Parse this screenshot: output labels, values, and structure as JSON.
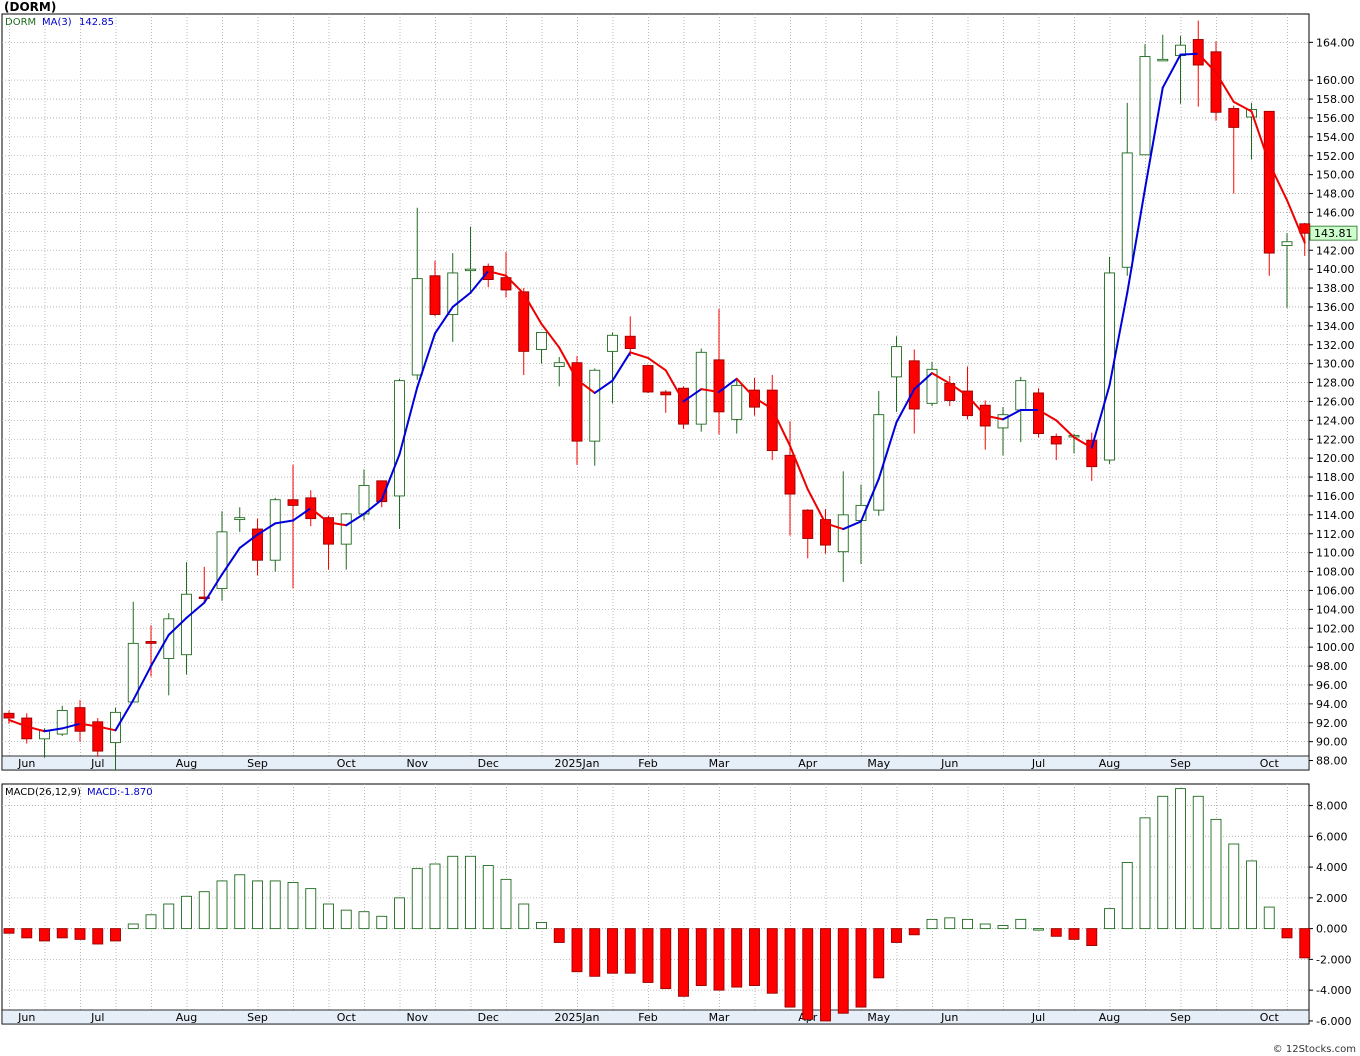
{
  "title": "(DORM)",
  "footer": "© 12Stocks.com",
  "colors": {
    "up": "#1f6b1f",
    "down": "#ff0000",
    "ma_up": "#0000dd",
    "ma_down": "#ee0000",
    "grid": "#aaaaaa",
    "last_bg": "#ccffcc"
  },
  "chart_data": [
    {
      "type": "candlestick",
      "symbol": "DORM",
      "legend": [
        "DORM",
        "MA(3)",
        "142.85"
      ],
      "ylim": [
        87,
        167
      ],
      "yticks": [
        88,
        90,
        92,
        94,
        96,
        98,
        100,
        102,
        104,
        106,
        108,
        110,
        112,
        114,
        116,
        118,
        120,
        122,
        124,
        126,
        128,
        130,
        132,
        134,
        136,
        138,
        140,
        142,
        144,
        146,
        148,
        150,
        152,
        154,
        156,
        158,
        160,
        164
      ],
      "last_price": "143.81",
      "xticks": [
        {
          "label": "Jun",
          "i": 1
        },
        {
          "label": "Jul",
          "i": 5
        },
        {
          "label": "Aug",
          "i": 10
        },
        {
          "label": "Sep",
          "i": 14
        },
        {
          "label": "Oct",
          "i": 19
        },
        {
          "label": "Nov",
          "i": 23
        },
        {
          "label": "Dec",
          "i": 27
        },
        {
          "label": "2025Jan",
          "i": 32
        },
        {
          "label": "Feb",
          "i": 36
        },
        {
          "label": "Mar",
          "i": 40
        },
        {
          "label": "Apr",
          "i": 45
        },
        {
          "label": "May",
          "i": 49
        },
        {
          "label": "Jun",
          "i": 53
        },
        {
          "label": "Jul",
          "i": 58
        },
        {
          "label": "Aug",
          "i": 62
        },
        {
          "label": "Sep",
          "i": 66
        },
        {
          "label": "Oct",
          "i": 71
        }
      ],
      "grid": true,
      "candles": [
        {
          "o": 93.0,
          "h": 93.3,
          "l": 91.9,
          "c": 92.5
        },
        {
          "o": 92.5,
          "h": 93.0,
          "l": 89.8,
          "c": 90.3
        },
        {
          "o": 90.3,
          "h": 91.4,
          "l": 88.3,
          "c": 91.2
        },
        {
          "o": 90.8,
          "h": 93.8,
          "l": 90.6,
          "c": 93.3
        },
        {
          "o": 93.6,
          "h": 94.4,
          "l": 90.0,
          "c": 91.1
        },
        {
          "o": 92.1,
          "h": 92.5,
          "l": 88.4,
          "c": 89.0
        },
        {
          "o": 89.9,
          "h": 93.6,
          "l": 87.0,
          "c": 93.1
        },
        {
          "o": 94.2,
          "h": 104.8,
          "l": 94.2,
          "c": 100.4
        },
        {
          "o": 100.6,
          "h": 102.3,
          "l": 96.9,
          "c": 100.4
        },
        {
          "o": 98.8,
          "h": 103.6,
          "l": 94.9,
          "c": 103.0
        },
        {
          "o": 99.2,
          "h": 109.0,
          "l": 97.1,
          "c": 105.6
        },
        {
          "o": 105.3,
          "h": 108.5,
          "l": 104.6,
          "c": 105.2
        },
        {
          "o": 106.2,
          "h": 114.4,
          "l": 104.9,
          "c": 112.2
        },
        {
          "o": 113.5,
          "h": 114.8,
          "l": 112.2,
          "c": 113.7
        },
        {
          "o": 112.5,
          "h": 113.6,
          "l": 107.6,
          "c": 109.2
        },
        {
          "o": 109.2,
          "h": 115.8,
          "l": 108.0,
          "c": 115.6
        },
        {
          "o": 115.6,
          "h": 119.3,
          "l": 106.2,
          "c": 115.0
        },
        {
          "o": 115.8,
          "h": 116.6,
          "l": 112.8,
          "c": 113.6
        },
        {
          "o": 113.7,
          "h": 113.9,
          "l": 108.2,
          "c": 110.9
        },
        {
          "o": 110.9,
          "h": 114.2,
          "l": 108.2,
          "c": 114.1
        },
        {
          "o": 114.1,
          "h": 118.8,
          "l": 113.4,
          "c": 117.1
        },
        {
          "o": 117.6,
          "h": 117.6,
          "l": 114.8,
          "c": 115.4
        },
        {
          "o": 116.0,
          "h": 128.4,
          "l": 112.5,
          "c": 128.2
        },
        {
          "o": 128.8,
          "h": 146.5,
          "l": 128.3,
          "c": 139.0
        },
        {
          "o": 139.3,
          "h": 140.9,
          "l": 135.0,
          "c": 135.2
        },
        {
          "o": 135.2,
          "h": 141.7,
          "l": 132.3,
          "c": 139.6
        },
        {
          "o": 140.0,
          "h": 144.5,
          "l": 137.6,
          "c": 140.0
        },
        {
          "o": 140.3,
          "h": 140.6,
          "l": 138.1,
          "c": 138.9
        },
        {
          "o": 139.1,
          "h": 141.8,
          "l": 137.0,
          "c": 137.8
        },
        {
          "o": 137.6,
          "h": 138.0,
          "l": 128.8,
          "c": 131.3
        },
        {
          "o": 131.5,
          "h": 133.3,
          "l": 130.0,
          "c": 133.3
        },
        {
          "o": 129.7,
          "h": 130.7,
          "l": 127.6,
          "c": 130.1
        },
        {
          "o": 130.1,
          "h": 130.8,
          "l": 119.3,
          "c": 121.8
        },
        {
          "o": 121.8,
          "h": 129.5,
          "l": 119.2,
          "c": 129.3
        },
        {
          "o": 131.3,
          "h": 133.3,
          "l": 125.8,
          "c": 133.0
        },
        {
          "o": 132.9,
          "h": 135.0,
          "l": 130.8,
          "c": 131.6
        },
        {
          "o": 129.8,
          "h": 129.9,
          "l": 126.9,
          "c": 127.0
        },
        {
          "o": 127.0,
          "h": 127.2,
          "l": 124.8,
          "c": 126.7
        },
        {
          "o": 127.4,
          "h": 127.6,
          "l": 123.1,
          "c": 123.6
        },
        {
          "o": 123.6,
          "h": 131.6,
          "l": 122.8,
          "c": 131.2
        },
        {
          "o": 130.4,
          "h": 135.8,
          "l": 122.5,
          "c": 124.9
        },
        {
          "o": 124.1,
          "h": 128.5,
          "l": 122.6,
          "c": 127.7
        },
        {
          "o": 127.2,
          "h": 128.5,
          "l": 124.5,
          "c": 125.4
        },
        {
          "o": 127.2,
          "h": 128.8,
          "l": 119.8,
          "c": 120.8
        },
        {
          "o": 120.3,
          "h": 123.9,
          "l": 111.8,
          "c": 116.2
        },
        {
          "o": 114.5,
          "h": 114.6,
          "l": 109.4,
          "c": 111.5
        },
        {
          "o": 113.5,
          "h": 114.6,
          "l": 109.9,
          "c": 110.8
        },
        {
          "o": 110.1,
          "h": 118.6,
          "l": 106.9,
          "c": 114.0
        },
        {
          "o": 113.4,
          "h": 117.2,
          "l": 108.8,
          "c": 115.0
        },
        {
          "o": 114.5,
          "h": 127.1,
          "l": 113.9,
          "c": 124.6
        },
        {
          "o": 128.6,
          "h": 132.9,
          "l": 124.9,
          "c": 131.8
        },
        {
          "o": 130.3,
          "h": 131.5,
          "l": 122.6,
          "c": 125.2
        },
        {
          "o": 125.8,
          "h": 130.2,
          "l": 125.5,
          "c": 129.4
        },
        {
          "o": 127.9,
          "h": 128.7,
          "l": 125.5,
          "c": 126.1
        },
        {
          "o": 127.1,
          "h": 129.7,
          "l": 124.1,
          "c": 124.5
        },
        {
          "o": 125.6,
          "h": 126.1,
          "l": 120.9,
          "c": 123.4
        },
        {
          "o": 123.2,
          "h": 125.4,
          "l": 120.3,
          "c": 124.6
        },
        {
          "o": 125.1,
          "h": 128.6,
          "l": 121.7,
          "c": 128.2
        },
        {
          "o": 126.9,
          "h": 127.4,
          "l": 122.2,
          "c": 122.6
        },
        {
          "o": 122.3,
          "h": 122.6,
          "l": 119.8,
          "c": 121.5
        },
        {
          "o": 122.4,
          "h": 122.6,
          "l": 120.5,
          "c": 122.4
        },
        {
          "o": 121.9,
          "h": 122.7,
          "l": 117.6,
          "c": 119.1
        },
        {
          "o": 119.8,
          "h": 141.3,
          "l": 119.4,
          "c": 139.6
        },
        {
          "o": 140.2,
          "h": 157.6,
          "l": 139.3,
          "c": 152.3
        },
        {
          "o": 152.1,
          "h": 163.8,
          "l": 152.1,
          "c": 162.5
        },
        {
          "o": 162.1,
          "h": 164.8,
          "l": 162.1,
          "c": 162.2
        },
        {
          "o": 162.6,
          "h": 164.7,
          "l": 157.5,
          "c": 163.7
        },
        {
          "o": 164.3,
          "h": 166.3,
          "l": 157.2,
          "c": 161.6
        },
        {
          "o": 163.0,
          "h": 164.1,
          "l": 155.7,
          "c": 156.6
        },
        {
          "o": 157.0,
          "h": 157.3,
          "l": 148.0,
          "c": 155.0
        },
        {
          "o": 156.1,
          "h": 157.6,
          "l": 151.6,
          "c": 156.9
        },
        {
          "o": 156.7,
          "h": 156.7,
          "l": 139.3,
          "c": 141.7
        },
        {
          "o": 142.5,
          "h": 143.8,
          "l": 135.9,
          "c": 142.9
        },
        {
          "o": 144.8,
          "h": 144.9,
          "l": 141.4,
          "c": 143.8
        }
      ],
      "ma3": [
        92.3,
        91.6,
        91.1,
        91.4,
        91.9,
        91.6,
        91.2,
        94.4,
        98.0,
        101.3,
        103.1,
        104.7,
        107.7,
        110.5,
        111.9,
        113.1,
        113.4,
        114.7,
        113.2,
        112.9,
        114.1,
        115.6,
        120.4,
        127.5,
        133.2,
        136.0,
        137.5,
        139.8,
        139.3,
        137.4,
        134.2,
        131.7,
        128.3,
        126.9,
        128.2,
        131.2,
        130.6,
        129.3,
        126.0,
        127.3,
        127.0,
        128.4,
        126.4,
        125.2,
        121.3,
        116.7,
        113.1,
        112.5,
        113.3,
        117.8,
        123.8,
        127.3,
        129.0,
        127.9,
        126.6,
        124.5,
        124.1,
        125.1,
        125.1,
        124.0,
        122.2,
        121.1,
        127.7,
        137.5,
        148.5,
        159.2,
        162.7,
        162.8,
        160.8,
        157.7,
        156.7,
        151.2,
        147.3,
        142.8
      ]
    },
    {
      "type": "bar",
      "title": "MACD(26,12,9)",
      "legend": [
        "MACD(26,12,9)",
        "MACD:-1.870"
      ],
      "ylim": [
        -6.2,
        9.4
      ],
      "yticks": [
        8,
        6,
        4,
        2,
        0,
        -2,
        -4,
        -6
      ],
      "ytick_labels": [
        "8.000",
        "6.000",
        "4.000",
        "2.000",
        "0.000",
        "-2.000",
        "-4.000",
        "-6.000"
      ],
      "xticks": [
        {
          "label": "Jun",
          "i": 1
        },
        {
          "label": "Jul",
          "i": 5
        },
        {
          "label": "Aug",
          "i": 10
        },
        {
          "label": "Sep",
          "i": 14
        },
        {
          "label": "Oct",
          "i": 19
        },
        {
          "label": "Nov",
          "i": 23
        },
        {
          "label": "Dec",
          "i": 27
        },
        {
          "label": "2025Jan",
          "i": 32
        },
        {
          "label": "Feb",
          "i": 36
        },
        {
          "label": "Mar",
          "i": 40
        },
        {
          "label": "Apr",
          "i": 45
        },
        {
          "label": "May",
          "i": 49
        },
        {
          "label": "Jun",
          "i": 53
        },
        {
          "label": "Jul",
          "i": 58
        },
        {
          "label": "Aug",
          "i": 62
        },
        {
          "label": "Sep",
          "i": 66
        },
        {
          "label": "Oct",
          "i": 71
        }
      ],
      "values": [
        -0.3,
        -0.6,
        -0.8,
        -0.6,
        -0.7,
        -1.0,
        -0.8,
        0.3,
        0.9,
        1.6,
        2.1,
        2.4,
        3.1,
        3.5,
        3.1,
        3.1,
        3.0,
        2.6,
        1.6,
        1.2,
        1.1,
        0.8,
        2.0,
        3.9,
        4.2,
        4.7,
        4.7,
        4.1,
        3.2,
        1.6,
        0.4,
        -0.9,
        -2.8,
        -3.1,
        -2.9,
        -2.9,
        -3.5,
        -3.9,
        -4.4,
        -3.7,
        -4.0,
        -3.8,
        -3.7,
        -4.2,
        -5.1,
        -5.9,
        -6.0,
        -5.5,
        -5.1,
        -3.2,
        -0.9,
        -0.4,
        0.6,
        0.7,
        0.6,
        0.3,
        0.2,
        0.6,
        0.0,
        -0.5,
        -0.7,
        -1.1,
        1.3,
        4.3,
        7.2,
        8.6,
        9.1,
        8.6,
        7.1,
        5.5,
        4.4,
        1.4,
        -0.6,
        -1.9
      ]
    }
  ]
}
